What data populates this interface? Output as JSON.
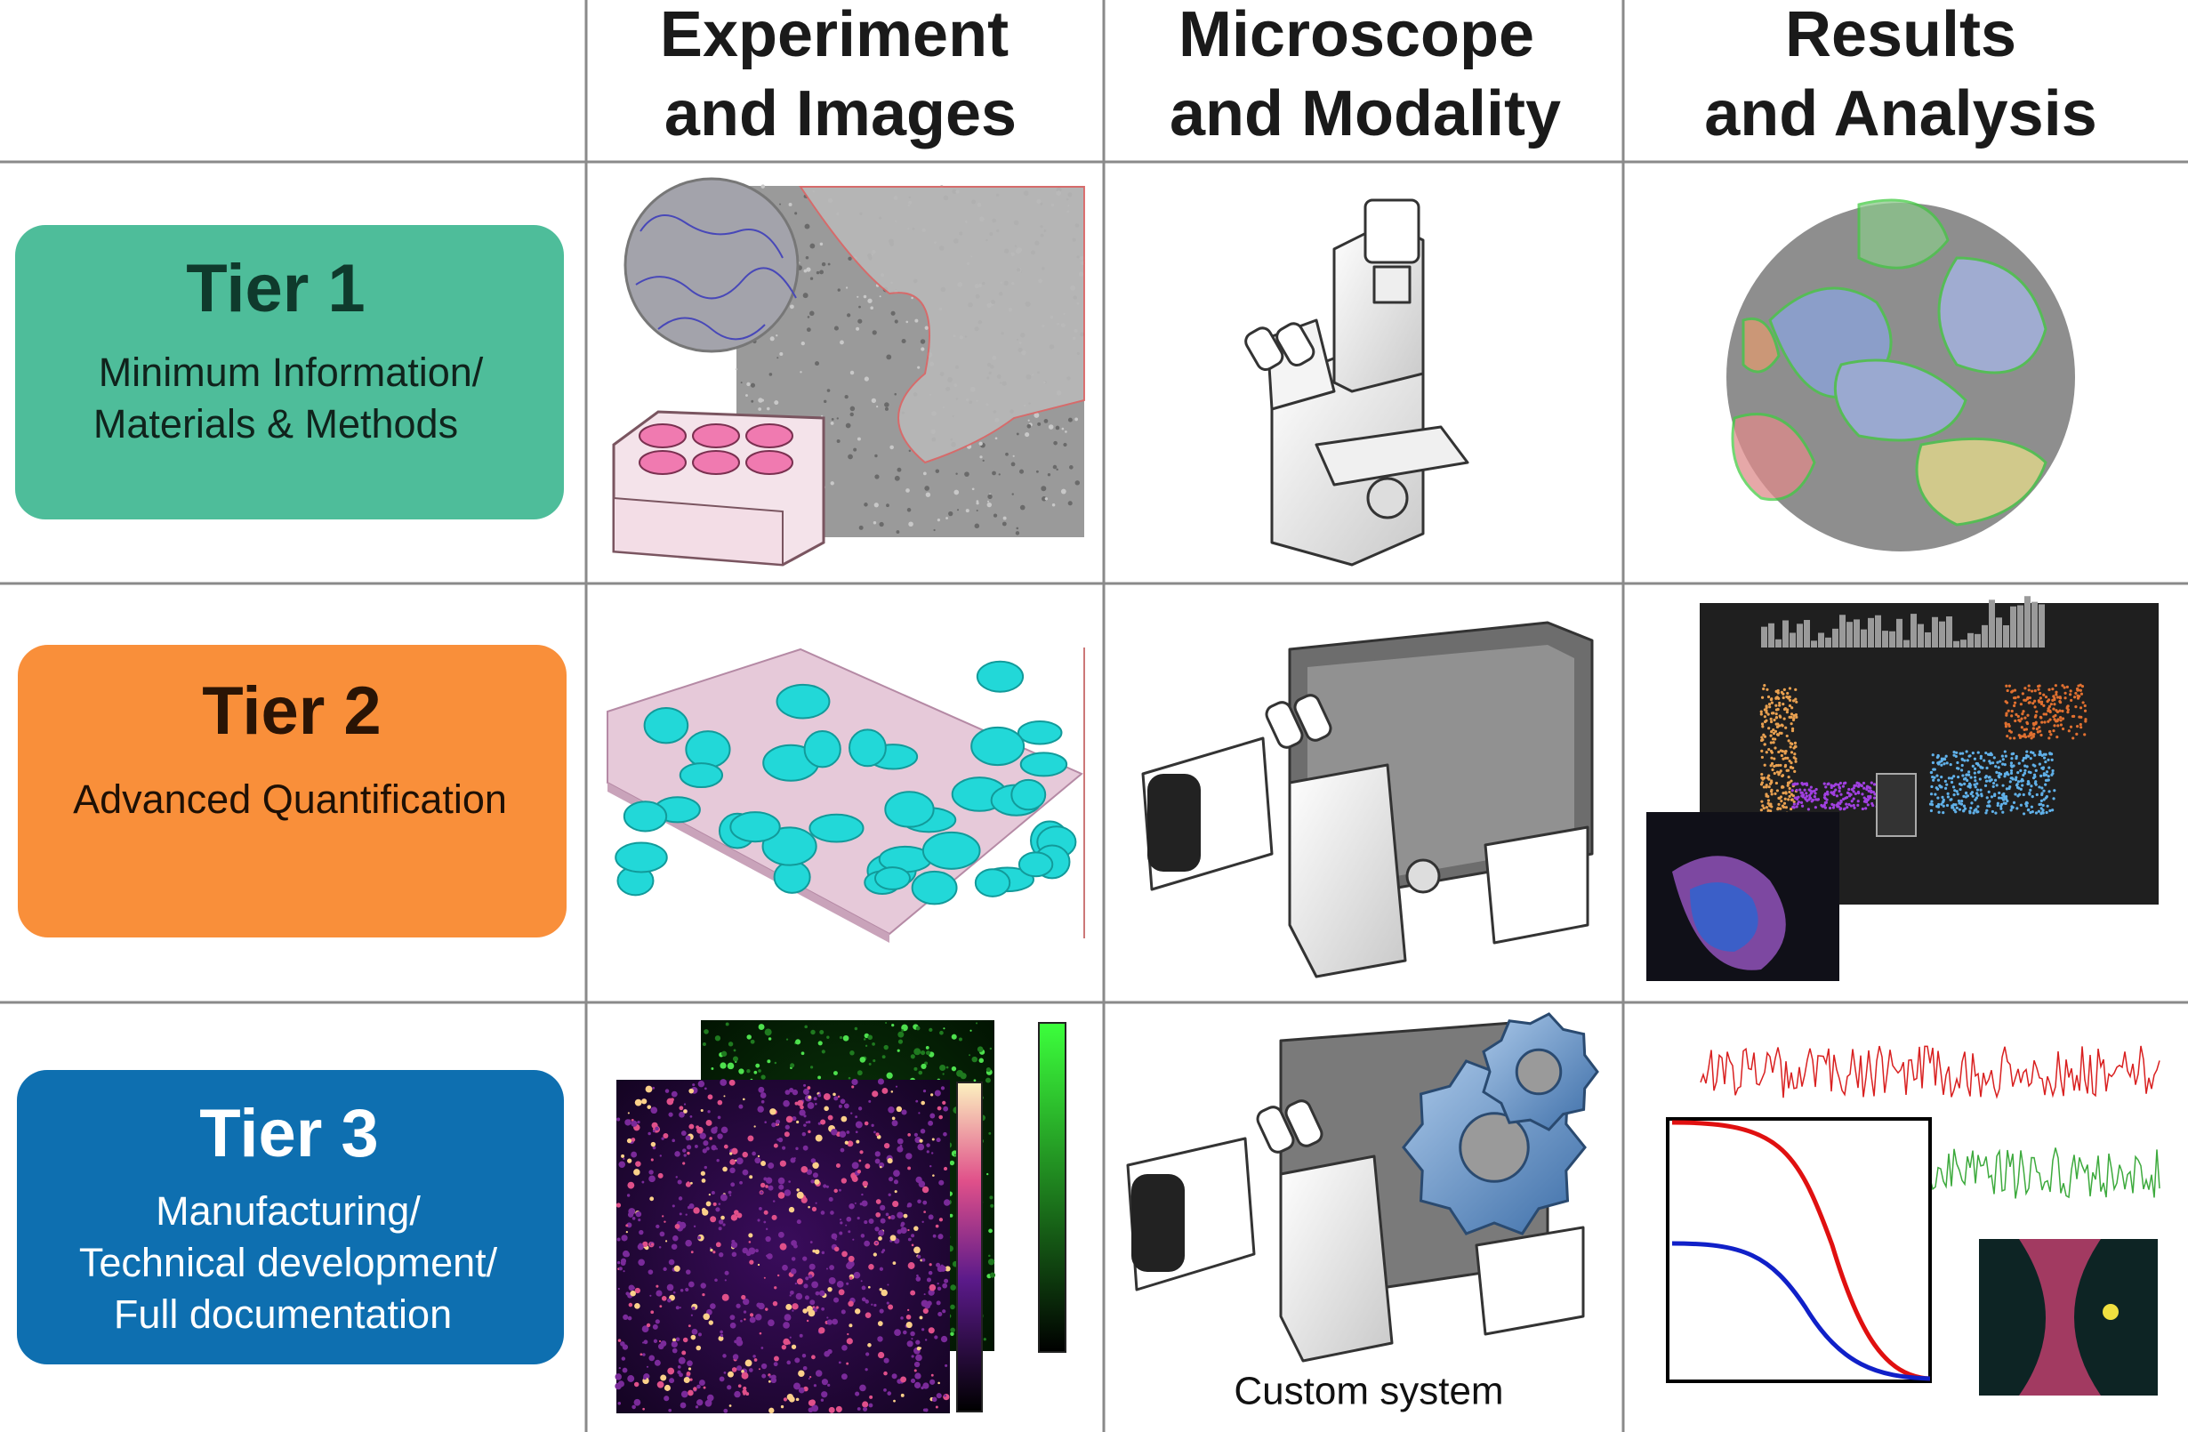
{
  "header": {
    "columns": [
      {
        "lines": [
          "Experiment",
          "and Images"
        ]
      },
      {
        "lines": [
          "Microscope",
          "and Modality"
        ]
      },
      {
        "lines": [
          "Results",
          "and Analysis"
        ]
      }
    ]
  },
  "tiers": [
    {
      "title": "Tier 1",
      "lines": [
        "Minimum Information/",
        "Materials & Methods"
      ]
    },
    {
      "title": "Tier 2",
      "lines": [
        "Advanced Quantification"
      ]
    },
    {
      "title": "Tier 3",
      "lines": [
        "Manufacturing/",
        "Technical development/",
        "Full documentation"
      ]
    }
  ],
  "captions": {
    "custom_system": "Custom system"
  }
}
